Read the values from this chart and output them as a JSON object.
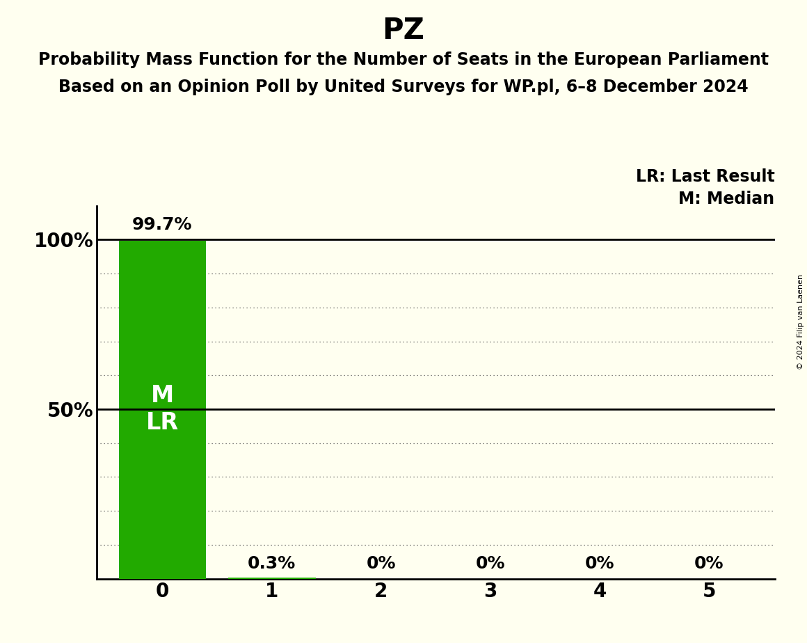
{
  "title": "PZ",
  "subtitle1": "Probability Mass Function for the Number of Seats in the European Parliament",
  "subtitle2": "Based on an Opinion Poll by United Surveys for WP.pl, 6–8 December 2024",
  "copyright": "© 2024 Filip van Laenen",
  "seats": [
    0,
    1,
    2,
    3,
    4,
    5
  ],
  "probabilities": [
    0.997,
    0.003,
    0.0,
    0.0,
    0.0,
    0.0
  ],
  "prob_labels": [
    "99.7%",
    "0.3%",
    "0%",
    "0%",
    "0%",
    "0%"
  ],
  "bar_color": "#22aa00",
  "background_color": "#fffff0",
  "median": 0,
  "last_result": 0,
  "legend_lr": "LR: Last Result",
  "legend_m": "M: Median",
  "ytick_positions": [
    0.0,
    0.1,
    0.2,
    0.3,
    0.4,
    0.5,
    0.6,
    0.7,
    0.8,
    0.9,
    1.0
  ],
  "ytick_labels": [
    "",
    "",
    "",
    "",
    "",
    "50%",
    "",
    "",
    "",
    "",
    "100%"
  ],
  "title_fontsize": 30,
  "subtitle_fontsize": 17,
  "tick_fontsize": 20,
  "bar_label_fontsize": 18,
  "legend_fontsize": 17,
  "annot_fontsize": 24
}
